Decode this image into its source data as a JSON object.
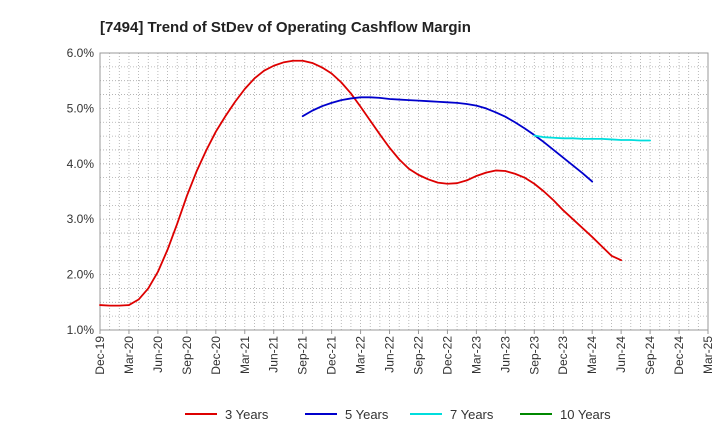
{
  "chart_data": {
    "type": "line",
    "title": "[7494]  Trend of StDev of Operating Cashflow Margin",
    "xlabel": "",
    "ylabel": "",
    "x_ticks": [
      "Dec-19",
      "Mar-20",
      "Jun-20",
      "Sep-20",
      "Dec-20",
      "Mar-21",
      "Jun-21",
      "Sep-21",
      "Dec-21",
      "Mar-22",
      "Jun-22",
      "Sep-22",
      "Dec-22",
      "Mar-23",
      "Jun-23",
      "Sep-23",
      "Dec-23",
      "Mar-24",
      "Jun-24",
      "Sep-24",
      "Dec-24",
      "Mar-25"
    ],
    "ylim": [
      1.0,
      6.0
    ],
    "y_ticks": [
      "1.0%",
      "2.0%",
      "3.0%",
      "4.0%",
      "5.0%",
      "6.0%"
    ],
    "grid": true,
    "legend_position": "bottom",
    "series": [
      {
        "name": "3 Years",
        "color": "#dd0000",
        "points": [
          [
            "Dec-19",
            1.45
          ],
          [
            "Jan-20",
            1.44
          ],
          [
            "Feb-20",
            1.44
          ],
          [
            "Mar-20",
            1.45
          ],
          [
            "Apr-20",
            1.55
          ],
          [
            "May-20",
            1.75
          ],
          [
            "Jun-20",
            2.05
          ],
          [
            "Jul-20",
            2.45
          ],
          [
            "Aug-20",
            2.92
          ],
          [
            "Sep-20",
            3.42
          ],
          [
            "Oct-20",
            3.86
          ],
          [
            "Nov-20",
            4.24
          ],
          [
            "Dec-20",
            4.58
          ],
          [
            "Jan-21",
            4.86
          ],
          [
            "Feb-21",
            5.12
          ],
          [
            "Mar-21",
            5.35
          ],
          [
            "Apr-21",
            5.54
          ],
          [
            "May-21",
            5.68
          ],
          [
            "Jun-21",
            5.77
          ],
          [
            "Jul-21",
            5.83
          ],
          [
            "Aug-21",
            5.86
          ],
          [
            "Sep-21",
            5.86
          ],
          [
            "Oct-21",
            5.82
          ],
          [
            "Nov-21",
            5.74
          ],
          [
            "Dec-21",
            5.63
          ],
          [
            "Jan-22",
            5.47
          ],
          [
            "Feb-22",
            5.27
          ],
          [
            "Mar-22",
            5.03
          ],
          [
            "Apr-22",
            4.78
          ],
          [
            "May-22",
            4.53
          ],
          [
            "Jun-22",
            4.29
          ],
          [
            "Jul-22",
            4.08
          ],
          [
            "Aug-22",
            3.91
          ],
          [
            "Sep-22",
            3.8
          ],
          [
            "Oct-22",
            3.72
          ],
          [
            "Nov-22",
            3.66
          ],
          [
            "Dec-22",
            3.64
          ],
          [
            "Jan-23",
            3.65
          ],
          [
            "Feb-23",
            3.7
          ],
          [
            "Mar-23",
            3.78
          ],
          [
            "Apr-23",
            3.84
          ],
          [
            "May-23",
            3.88
          ],
          [
            "Jun-23",
            3.87
          ],
          [
            "Jul-23",
            3.82
          ],
          [
            "Aug-23",
            3.75
          ],
          [
            "Sep-23",
            3.64
          ],
          [
            "Oct-23",
            3.5
          ],
          [
            "Nov-23",
            3.34
          ],
          [
            "Dec-23",
            3.16
          ],
          [
            "Jan-24",
            3.0
          ],
          [
            "Feb-24",
            2.84
          ],
          [
            "Mar-24",
            2.68
          ],
          [
            "Apr-24",
            2.51
          ],
          [
            "May-24",
            2.34
          ],
          [
            "Jun-24",
            2.26
          ]
        ]
      },
      {
        "name": "5 Years",
        "color": "#0000cc",
        "points": [
          [
            "Sep-21",
            4.86
          ],
          [
            "Oct-21",
            4.96
          ],
          [
            "Nov-21",
            5.04
          ],
          [
            "Dec-21",
            5.1
          ],
          [
            "Jan-22",
            5.15
          ],
          [
            "Feb-22",
            5.18
          ],
          [
            "Mar-22",
            5.2
          ],
          [
            "Apr-22",
            5.2
          ],
          [
            "May-22",
            5.19
          ],
          [
            "Jun-22",
            5.17
          ],
          [
            "Jul-22",
            5.16
          ],
          [
            "Aug-22",
            5.15
          ],
          [
            "Sep-22",
            5.14
          ],
          [
            "Oct-22",
            5.13
          ],
          [
            "Nov-22",
            5.12
          ],
          [
            "Dec-22",
            5.11
          ],
          [
            "Jan-23",
            5.1
          ],
          [
            "Feb-23",
            5.08
          ],
          [
            "Mar-23",
            5.05
          ],
          [
            "Apr-23",
            5.0
          ],
          [
            "May-23",
            4.93
          ],
          [
            "Jun-23",
            4.85
          ],
          [
            "Jul-23",
            4.75
          ],
          [
            "Aug-23",
            4.64
          ],
          [
            "Sep-23",
            4.52
          ],
          [
            "Oct-23",
            4.39
          ],
          [
            "Nov-23",
            4.25
          ],
          [
            "Dec-23",
            4.11
          ],
          [
            "Jan-24",
            3.97
          ],
          [
            "Feb-24",
            3.83
          ],
          [
            "Mar-24",
            3.68
          ]
        ]
      },
      {
        "name": "7 Years",
        "color": "#00dddd",
        "points": [
          [
            "Sep-23",
            4.51
          ],
          [
            "Oct-23",
            4.48
          ],
          [
            "Nov-23",
            4.47
          ],
          [
            "Dec-23",
            4.46
          ],
          [
            "Jan-24",
            4.46
          ],
          [
            "Feb-24",
            4.45
          ],
          [
            "Mar-24",
            4.45
          ],
          [
            "Apr-24",
            4.45
          ],
          [
            "May-24",
            4.44
          ],
          [
            "Jun-24",
            4.43
          ],
          [
            "Jul-24",
            4.43
          ],
          [
            "Aug-24",
            4.42
          ],
          [
            "Sep-24",
            4.42
          ]
        ]
      },
      {
        "name": "10 Years",
        "color": "#008800",
        "points": []
      }
    ]
  }
}
